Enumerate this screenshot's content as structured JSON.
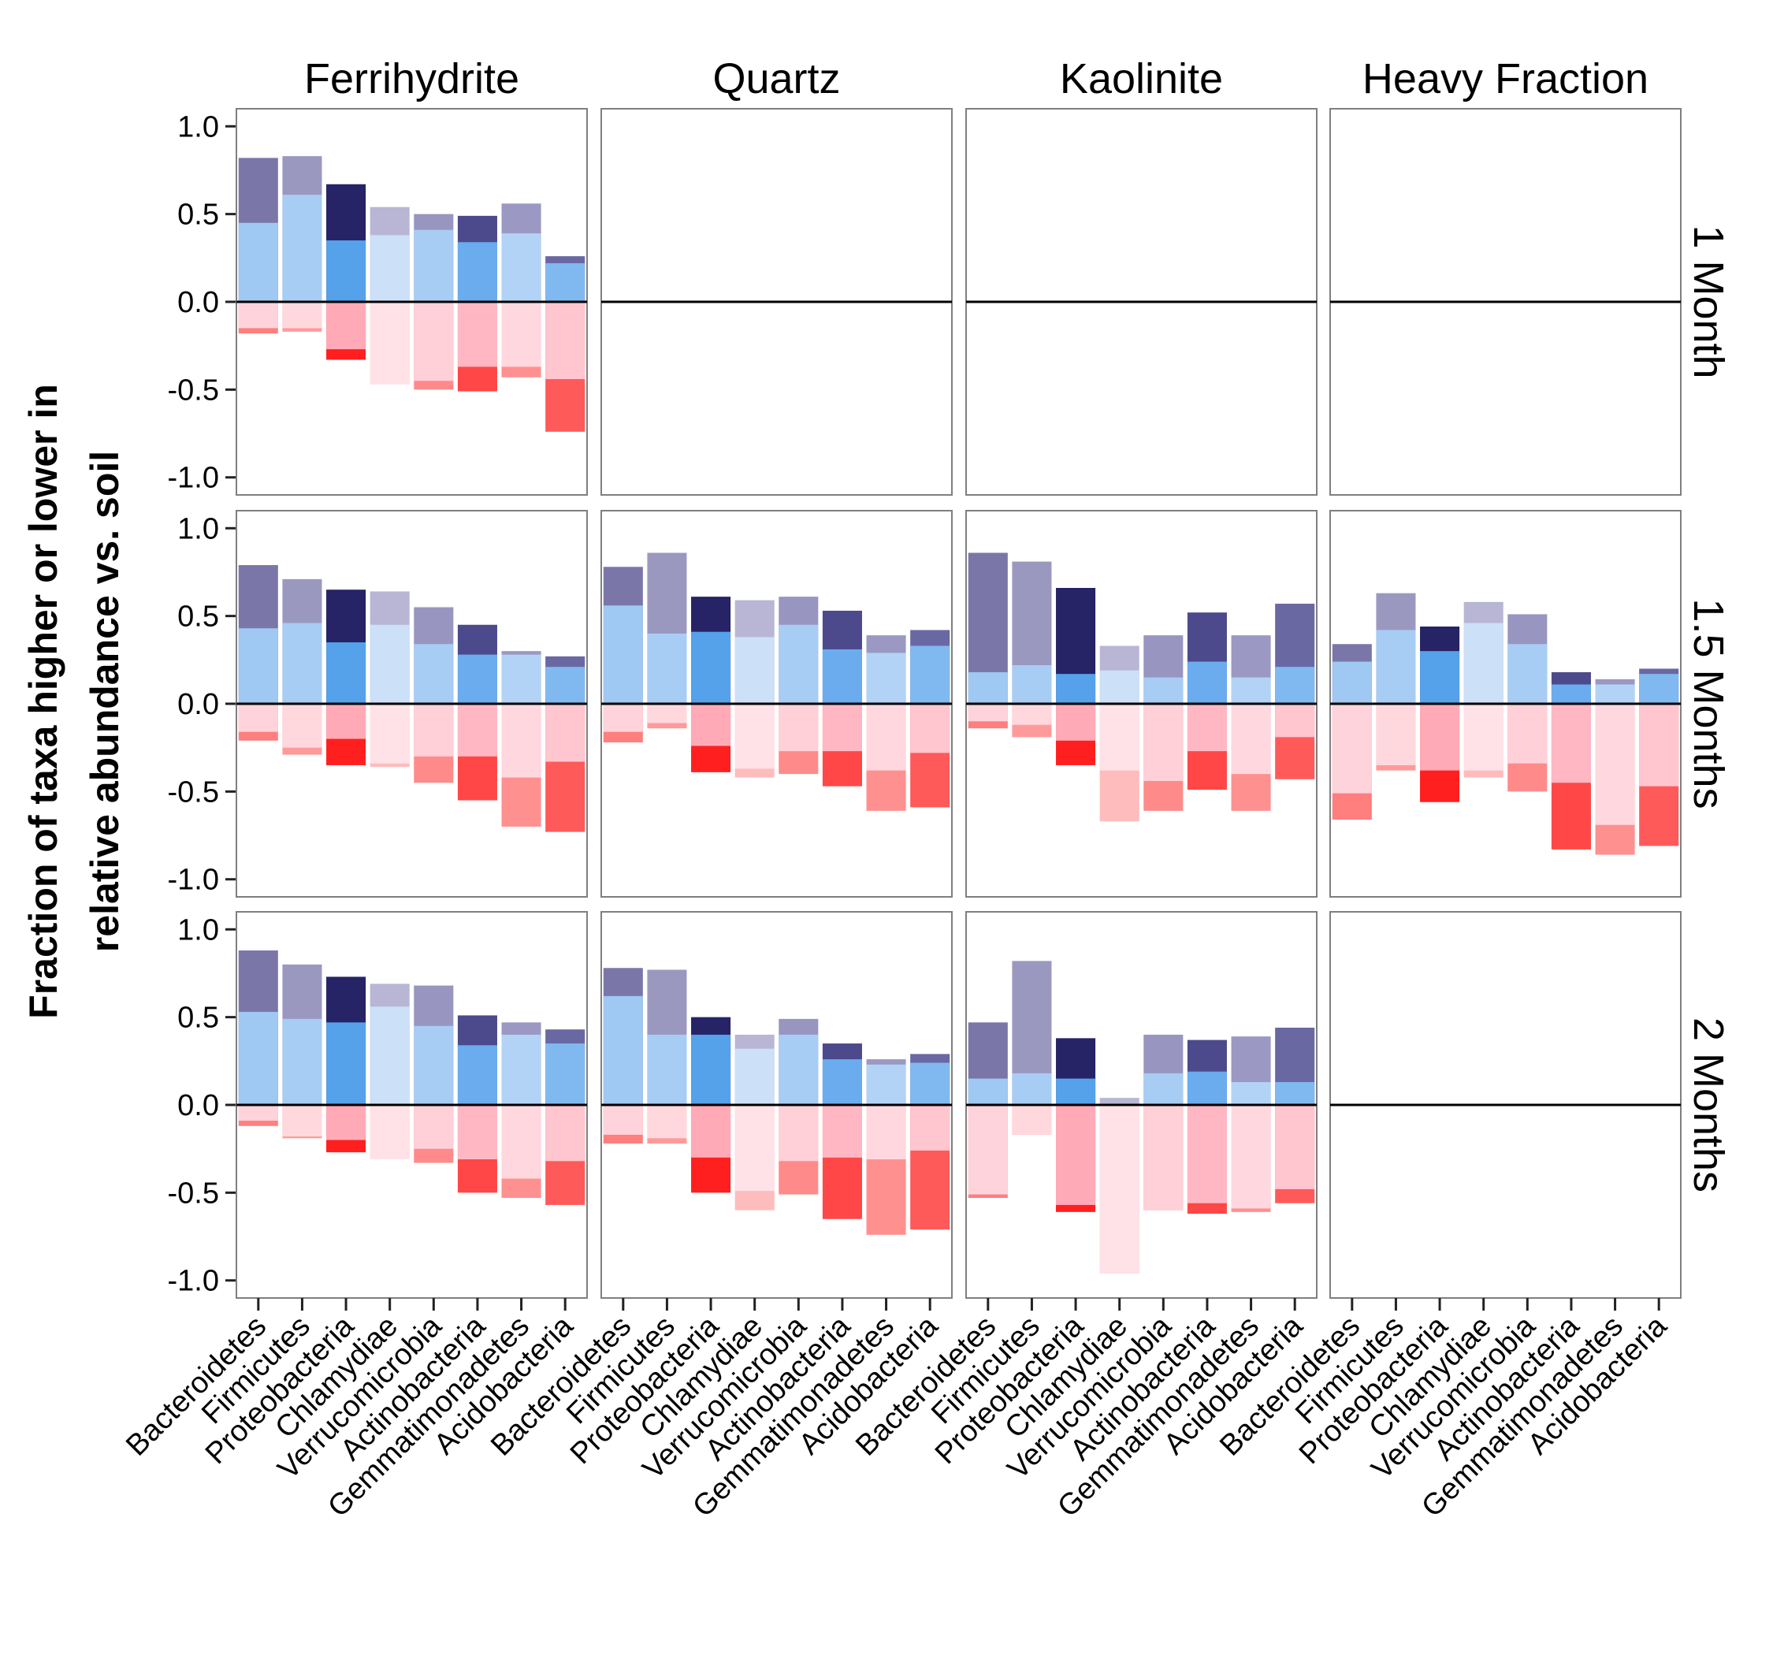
{
  "chart_data": {
    "type": "bar",
    "ylabel": [
      "Fraction of taxa higher or lower in",
      "relative abundance vs. soil"
    ],
    "ylim": [
      -1.1,
      1.1
    ],
    "yticks": [
      "1.0",
      "0.5",
      "0.0",
      "-0.5",
      "-1.0"
    ],
    "ytick_values": [
      1.0,
      0.5,
      0.0,
      -0.5,
      -1.0
    ],
    "columns": [
      "Ferrihydrite",
      "Quartz",
      "Kaolinite",
      "Heavy Fraction"
    ],
    "rows": [
      "1 Month",
      "1.5 Months",
      "2 Months"
    ],
    "categories": [
      "Bacteroidetes",
      "Firmicutes",
      "Proteobacteria",
      "Chlamydiae",
      "Verrucomicrobia",
      "Actinobacteria",
      "Gemmatimonadetes",
      "Acidobacteria"
    ],
    "legend": "none",
    "colors": {
      "pos_base": [
        "#9fc8f2",
        "#a8cdf4",
        "#55a1ea",
        "#cce0f8",
        "#a8cdf4",
        "#6aacee",
        "#b2d3f5",
        "#80b9ef"
      ],
      "pos_top": [
        "#7a77a8",
        "#9b98c0",
        "#262366",
        "#b8b6d4",
        "#9896c0",
        "#4c4a8c",
        "#9b98c3",
        "#6a68a3"
      ],
      "neg_base": [
        "#ffd3db",
        "#ffd8de",
        "#ffaab6",
        "#ffe2e7",
        "#ffd0d8",
        "#ffb8c3",
        "#ffd8df",
        "#ffc6cf"
      ],
      "neg_tip": [
        "#ff7e7e",
        "#ff9a9a",
        "#ff1f1f",
        "#ffbcbc",
        "#ff8a8a",
        "#ff4747",
        "#ff9090",
        "#ff5a5a"
      ]
    },
    "panels": [
      {
        "row": 0,
        "col": 0,
        "pos_base": [
          0.45,
          0.61,
          0.35,
          0.38,
          0.41,
          0.34,
          0.39,
          0.22
        ],
        "pos_top": [
          0.82,
          0.83,
          0.67,
          0.54,
          0.5,
          0.49,
          0.56,
          0.26
        ],
        "neg_base": [
          -0.15,
          -0.15,
          -0.27,
          -0.47,
          -0.45,
          -0.37,
          -0.37,
          -0.44
        ],
        "neg_tip": [
          -0.18,
          -0.17,
          -0.33,
          -0.47,
          -0.5,
          -0.51,
          -0.43,
          -0.74
        ]
      },
      {
        "row": 0,
        "col": 1,
        "empty": true
      },
      {
        "row": 0,
        "col": 2,
        "empty": true
      },
      {
        "row": 0,
        "col": 3,
        "empty": true
      },
      {
        "row": 1,
        "col": 0,
        "pos_base": [
          0.43,
          0.46,
          0.35,
          0.45,
          0.34,
          0.28,
          0.28,
          0.21
        ],
        "pos_top": [
          0.79,
          0.71,
          0.65,
          0.64,
          0.55,
          0.45,
          0.3,
          0.27
        ],
        "neg_base": [
          -0.16,
          -0.25,
          -0.2,
          -0.34,
          -0.3,
          -0.3,
          -0.42,
          -0.33
        ],
        "neg_tip": [
          -0.21,
          -0.29,
          -0.35,
          -0.36,
          -0.45,
          -0.55,
          -0.7,
          -0.73
        ]
      },
      {
        "row": 1,
        "col": 1,
        "pos_base": [
          0.56,
          0.4,
          0.41,
          0.38,
          0.45,
          0.31,
          0.29,
          0.33
        ],
        "pos_top": [
          0.78,
          0.86,
          0.61,
          0.59,
          0.61,
          0.53,
          0.39,
          0.42
        ],
        "neg_base": [
          -0.16,
          -0.11,
          -0.24,
          -0.37,
          -0.27,
          -0.27,
          -0.38,
          -0.28
        ],
        "neg_tip": [
          -0.22,
          -0.14,
          -0.39,
          -0.42,
          -0.4,
          -0.47,
          -0.61,
          -0.59
        ]
      },
      {
        "row": 1,
        "col": 2,
        "pos_base": [
          0.18,
          0.22,
          0.17,
          0.19,
          0.15,
          0.24,
          0.15,
          0.21
        ],
        "pos_top": [
          0.86,
          0.81,
          0.66,
          0.33,
          0.39,
          0.52,
          0.39,
          0.57
        ],
        "neg_base": [
          -0.1,
          -0.12,
          -0.21,
          -0.38,
          -0.44,
          -0.27,
          -0.4,
          -0.19
        ],
        "neg_tip": [
          -0.14,
          -0.19,
          -0.35,
          -0.67,
          -0.61,
          -0.49,
          -0.61,
          -0.43
        ]
      },
      {
        "row": 1,
        "col": 3,
        "pos_base": [
          0.24,
          0.42,
          0.3,
          0.46,
          0.34,
          0.11,
          0.11,
          0.17
        ],
        "pos_top": [
          0.34,
          0.63,
          0.44,
          0.58,
          0.51,
          0.18,
          0.14,
          0.2
        ],
        "neg_base": [
          -0.51,
          -0.35,
          -0.38,
          -0.38,
          -0.34,
          -0.45,
          -0.69,
          -0.47
        ],
        "neg_tip": [
          -0.66,
          -0.38,
          -0.56,
          -0.42,
          -0.5,
          -0.83,
          -0.86,
          -0.81
        ]
      },
      {
        "row": 2,
        "col": 0,
        "pos_base": [
          0.53,
          0.49,
          0.47,
          0.56,
          0.45,
          0.34,
          0.4,
          0.35
        ],
        "pos_top": [
          0.88,
          0.8,
          0.73,
          0.69,
          0.68,
          0.51,
          0.47,
          0.43
        ],
        "neg_base": [
          -0.09,
          -0.18,
          -0.2,
          -0.31,
          -0.25,
          -0.31,
          -0.42,
          -0.32
        ],
        "neg_tip": [
          -0.12,
          -0.19,
          -0.27,
          -0.31,
          -0.33,
          -0.5,
          -0.53,
          -0.57
        ]
      },
      {
        "row": 2,
        "col": 1,
        "pos_base": [
          0.62,
          0.4,
          0.4,
          0.32,
          0.4,
          0.26,
          0.23,
          0.24
        ],
        "pos_top": [
          0.78,
          0.77,
          0.5,
          0.4,
          0.49,
          0.35,
          0.26,
          0.29
        ],
        "neg_base": [
          -0.17,
          -0.19,
          -0.3,
          -0.49,
          -0.32,
          -0.3,
          -0.31,
          -0.26
        ],
        "neg_tip": [
          -0.22,
          -0.22,
          -0.5,
          -0.6,
          -0.51,
          -0.65,
          -0.74,
          -0.71
        ]
      },
      {
        "row": 2,
        "col": 2,
        "pos_base": [
          0.15,
          0.18,
          0.15,
          0.0,
          0.18,
          0.19,
          0.13,
          0.13
        ],
        "pos_top": [
          0.47,
          0.82,
          0.38,
          0.04,
          0.4,
          0.37,
          0.39,
          0.44
        ],
        "neg_base": [
          -0.51,
          -0.17,
          -0.57,
          -0.96,
          -0.6,
          -0.56,
          -0.59,
          -0.48
        ],
        "neg_tip": [
          -0.53,
          -0.17,
          -0.61,
          -0.96,
          -0.6,
          -0.62,
          -0.61,
          -0.56
        ]
      },
      {
        "row": 2,
        "col": 3,
        "empty": true
      }
    ]
  }
}
